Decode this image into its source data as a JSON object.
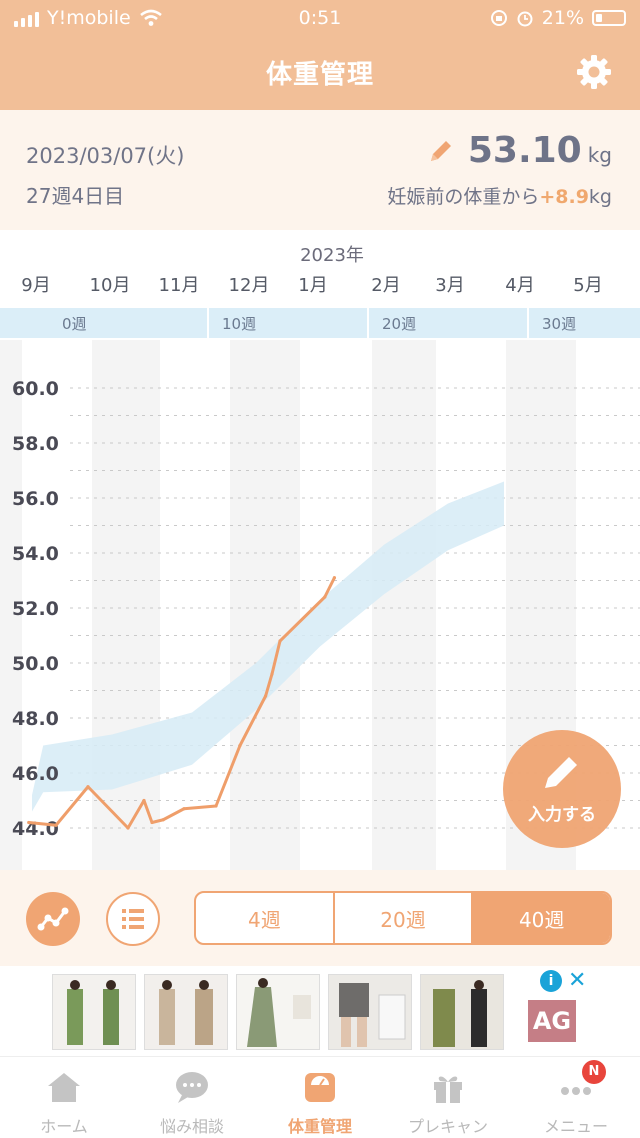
{
  "status_bar": {
    "carrier": "Y!mobile",
    "time": "0:51",
    "battery": "21%"
  },
  "header": {
    "title": "体重管理"
  },
  "summary": {
    "date": "2023/03/07(火)",
    "week": "27週4日目",
    "weight_value": "53.10",
    "weight_unit": "kg",
    "diff_prefix": "妊娠前の体重から",
    "diff_value": "+8.9",
    "diff_unit": "kg"
  },
  "chart_data": {
    "type": "line",
    "year_label": "2023年",
    "months": [
      "9月",
      "10月",
      "11月",
      "12月",
      "1月",
      "2月",
      "3月",
      "4月",
      "5月"
    ],
    "week_labels": [
      "0週",
      "10週",
      "20週",
      "30週"
    ],
    "y_ticks": [
      "60.0",
      "58.0",
      "56.0",
      "54.0",
      "52.0",
      "50.0",
      "48.0",
      "46.0",
      "44.0"
    ],
    "ylim": [
      43.5,
      61.0
    ],
    "xlim": [
      -3,
      37
    ],
    "series": [
      {
        "x": [
          -1.2,
          0.5,
          2.5,
          5.0,
          6.0,
          6.5,
          7.2,
          8.5,
          10.5,
          12.0,
          13.6,
          14.0,
          14.5,
          17.3,
          17.9
        ],
        "y": [
          44.2,
          44.1,
          45.5,
          44.0,
          45.0,
          44.2,
          44.3,
          44.7,
          44.8,
          47.0,
          48.8,
          49.6,
          50.8,
          52.4,
          53.1
        ]
      }
    ],
    "range_band": {
      "x": [
        -1.0,
        -0.3,
        4.0,
        9.0,
        13.0,
        17.0,
        21.0,
        25.0,
        28.5
      ],
      "upper": [
        45.2,
        47.0,
        47.4,
        48.2,
        50.0,
        52.3,
        54.3,
        55.8,
        56.6
      ],
      "lower": [
        44.6,
        45.3,
        45.4,
        46.3,
        48.3,
        50.6,
        52.5,
        54.1,
        55.0
      ]
    }
  },
  "fab": {
    "label": "入力する"
  },
  "range_tabs": [
    "4週",
    "20週",
    "40週"
  ],
  "range_selected": "40週",
  "ad": {
    "logo": "AG",
    "info": "i",
    "close": "✕"
  },
  "tabs": [
    {
      "label": "ホーム",
      "icon": "house-icon"
    },
    {
      "label": "悩み相談",
      "icon": "chat-bubble-icon"
    },
    {
      "label": "体重管理",
      "icon": "scale-icon"
    },
    {
      "label": "プレキャン",
      "icon": "gift-icon"
    },
    {
      "label": "メニュー",
      "icon": "more-dots-icon"
    }
  ],
  "menu_badge": "N",
  "colors": {
    "accent": "#f0a573",
    "header": "#f2bf98",
    "band": "#d6ebf6",
    "line": "#ef9e6a"
  }
}
